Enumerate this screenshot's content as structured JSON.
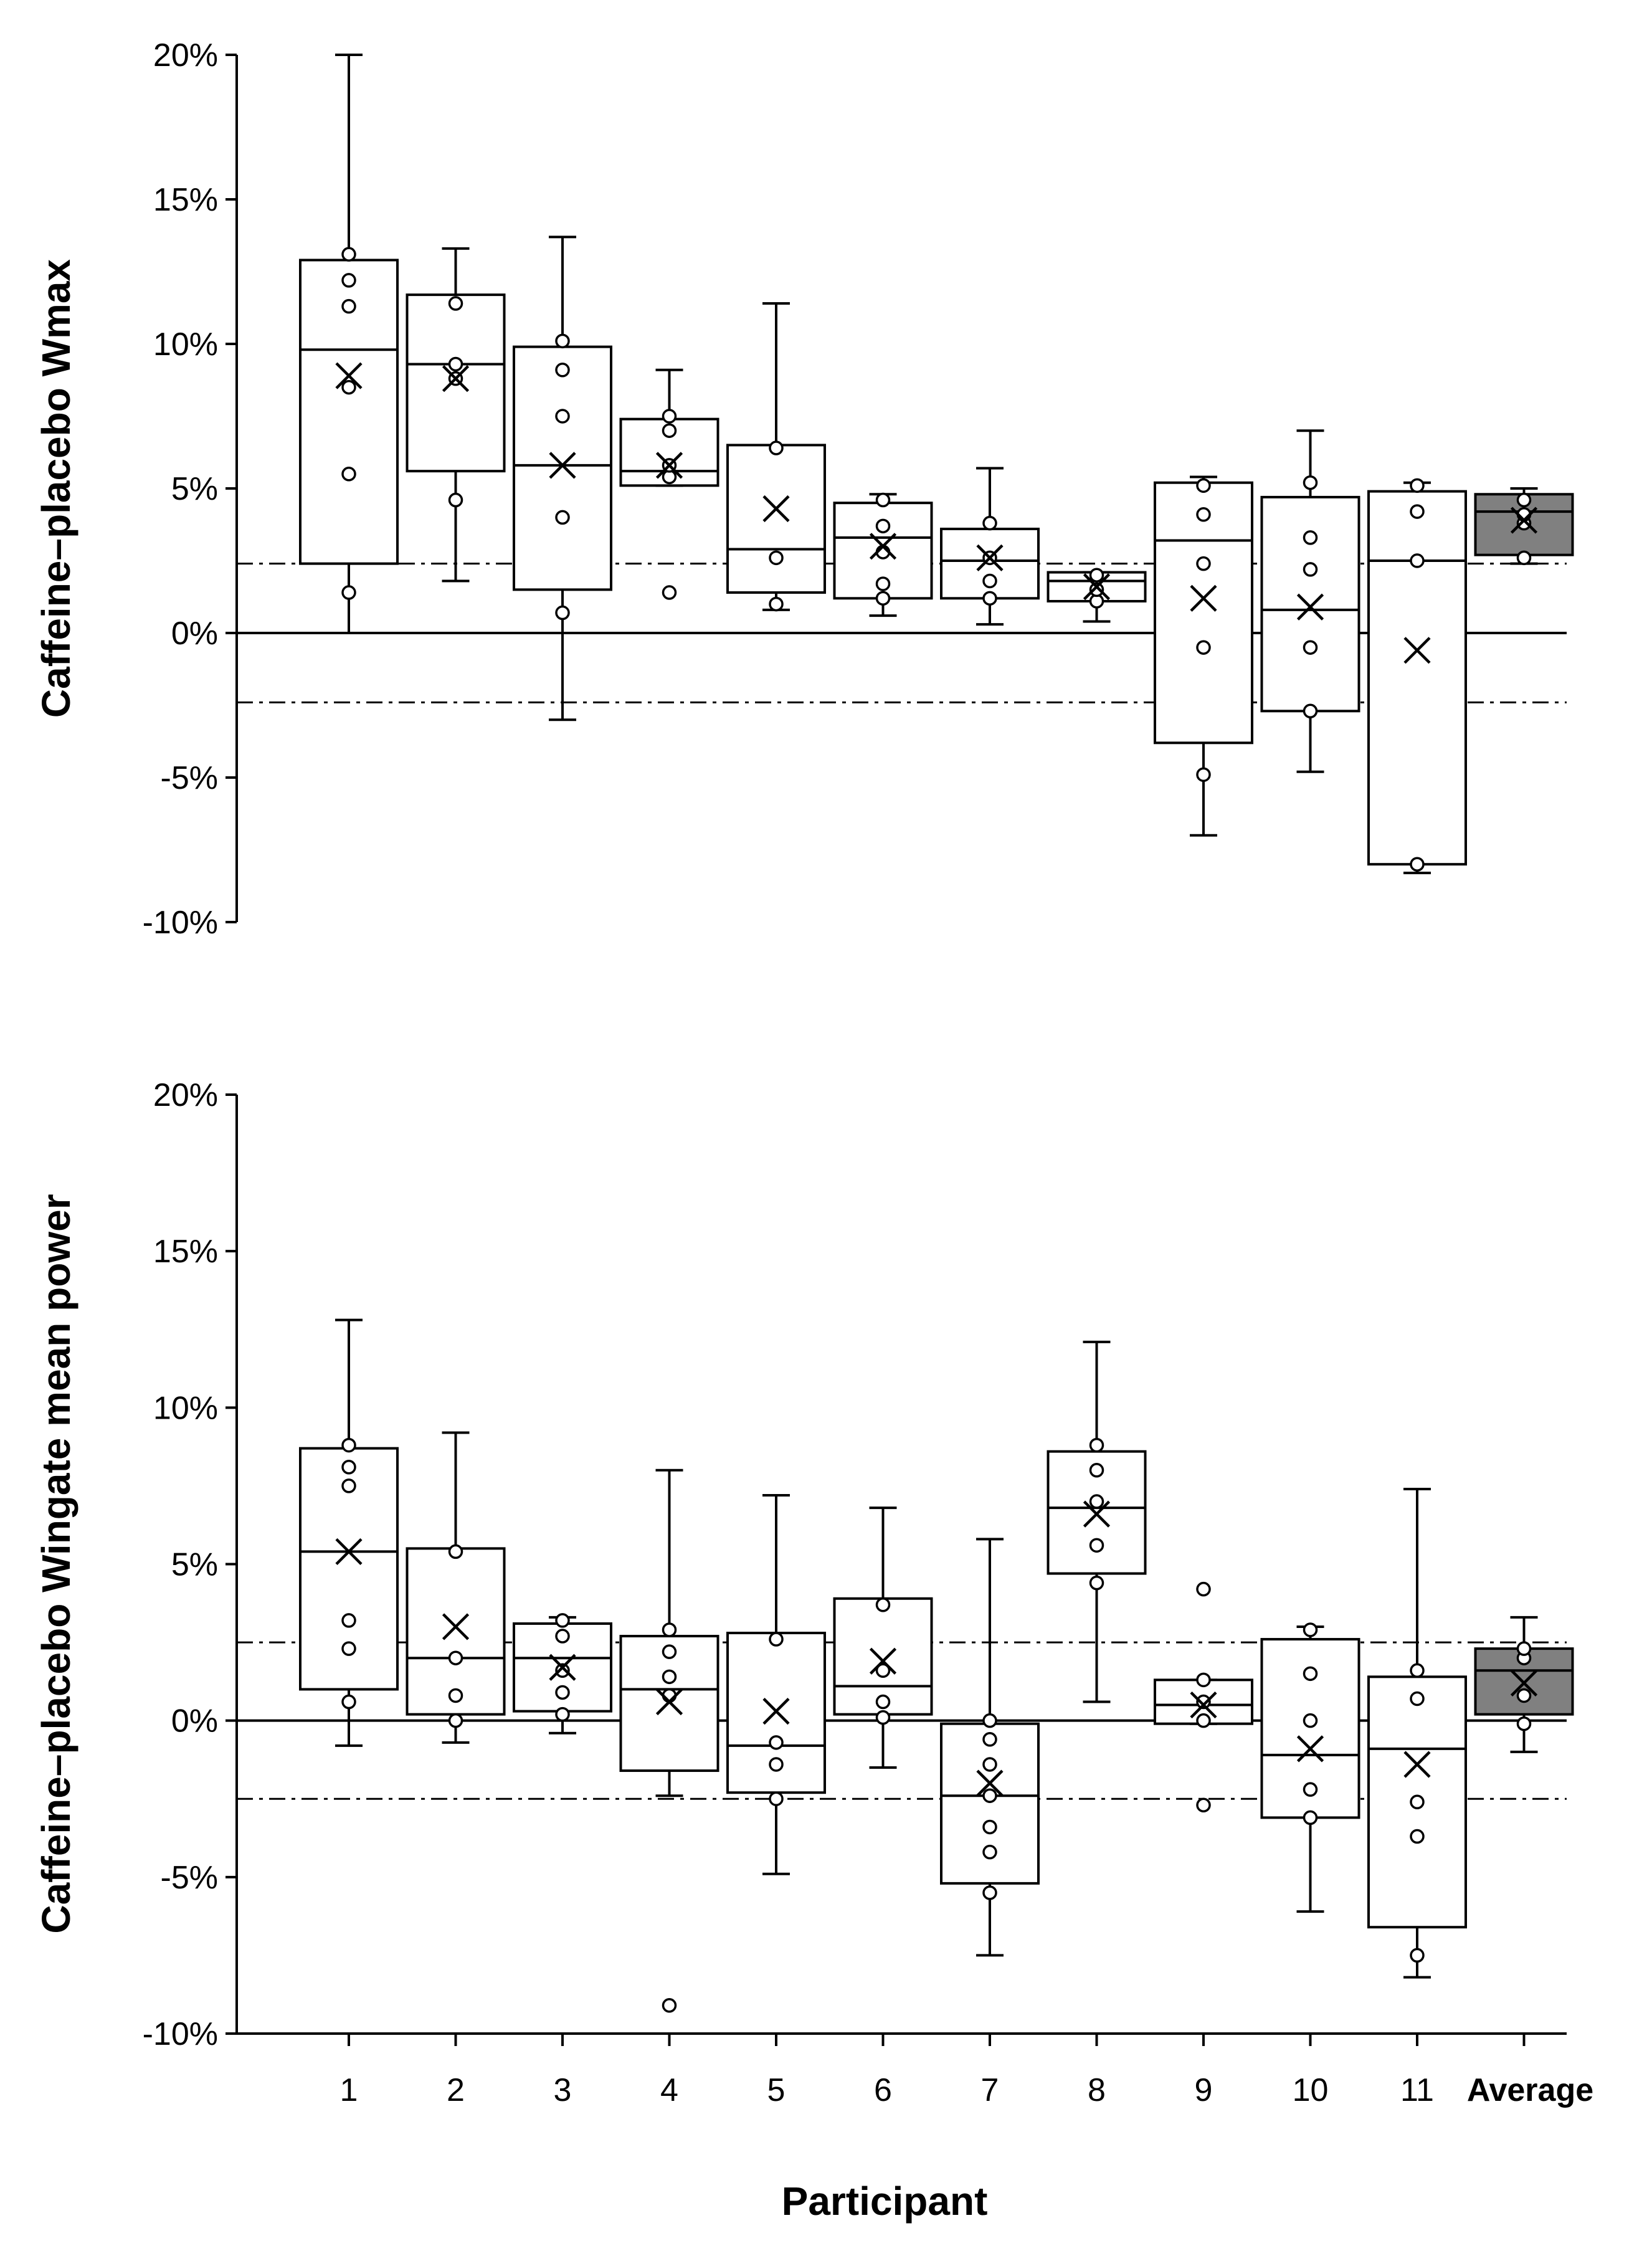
{
  "figure": {
    "xlabel": "Participant"
  },
  "chart_data": [
    {
      "type": "box",
      "ylabel": "Caffeine–placebo Wmax",
      "ylim": [
        -10,
        20
      ],
      "yticks": [
        -10,
        -5,
        0,
        5,
        10,
        15,
        20
      ],
      "ytick_labels": [
        "-10%",
        "-5%",
        "0%",
        "5%",
        "10%",
        "15%",
        "20%"
      ],
      "reference_lines": [
        {
          "style": "solid",
          "value": 0
        },
        {
          "style": "dash-dot",
          "value": 2.4
        },
        {
          "style": "dash-dot",
          "value": -2.4
        }
      ],
      "colors": {
        "box": "#ffffff",
        "average_box": "#808080",
        "stroke": "#000000"
      },
      "boxes": [
        {
          "category": "1",
          "whisker_low": 0.0,
          "q1": 2.4,
          "median": 9.8,
          "q3": 12.9,
          "whisker_high": 20.0,
          "mean": 8.9,
          "points": [
            1.4,
            5.5,
            8.5,
            11.3,
            12.2,
            13.1
          ]
        },
        {
          "category": "2",
          "whisker_low": 1.8,
          "q1": 5.6,
          "median": 9.3,
          "q3": 11.7,
          "whisker_high": 13.3,
          "mean": 8.8,
          "points": [
            4.6,
            8.8,
            9.3,
            11.4
          ]
        },
        {
          "category": "3",
          "whisker_low": -3.0,
          "q1": 1.5,
          "median": 5.8,
          "q3": 9.9,
          "whisker_high": 13.7,
          "mean": 5.8,
          "points": [
            0.7,
            4.0,
            7.5,
            9.1,
            10.1
          ]
        },
        {
          "category": "4",
          "whisker_low": 5.1,
          "q1": 5.1,
          "median": 5.6,
          "q3": 7.4,
          "whisker_high": 9.1,
          "mean": 5.8,
          "points": [
            1.4,
            5.4,
            5.8,
            7.0,
            7.5
          ]
        },
        {
          "category": "5",
          "whisker_low": 0.8,
          "q1": 1.4,
          "median": 2.9,
          "q3": 6.5,
          "whisker_high": 11.4,
          "mean": 4.3,
          "points": [
            1.0,
            2.6,
            6.4
          ]
        },
        {
          "category": "6",
          "whisker_low": 0.6,
          "q1": 1.2,
          "median": 3.3,
          "q3": 4.5,
          "whisker_high": 4.8,
          "mean": 3.0,
          "points": [
            1.2,
            1.7,
            2.8,
            3.7,
            4.6
          ]
        },
        {
          "category": "7",
          "whisker_low": 0.3,
          "q1": 1.2,
          "median": 2.5,
          "q3": 3.6,
          "whisker_high": 5.7,
          "mean": 2.6,
          "points": [
            1.2,
            1.8,
            2.6,
            3.8
          ]
        },
        {
          "category": "8",
          "whisker_low": 0.4,
          "q1": 1.1,
          "median": 1.8,
          "q3": 2.1,
          "whisker_high": 2.1,
          "mean": 1.6,
          "points": [
            1.1,
            1.5,
            2.0
          ]
        },
        {
          "category": "9",
          "whisker_low": -7.0,
          "q1": -3.8,
          "median": 3.2,
          "q3": 5.2,
          "whisker_high": 5.4,
          "mean": 1.2,
          "points": [
            -4.9,
            -0.5,
            2.4,
            4.1,
            5.1
          ]
        },
        {
          "category": "10",
          "whisker_low": -4.8,
          "q1": -2.7,
          "median": 0.8,
          "q3": 4.7,
          "whisker_high": 7.0,
          "mean": 0.9,
          "points": [
            -2.7,
            -0.5,
            2.2,
            3.3,
            5.2
          ]
        },
        {
          "category": "11",
          "whisker_low": -8.3,
          "q1": -8.0,
          "median": 2.5,
          "q3": 4.9,
          "whisker_high": 5.2,
          "mean": -0.6,
          "points": [
            -8.0,
            2.5,
            4.2,
            5.1
          ]
        },
        {
          "category": "Average",
          "whisker_low": 2.4,
          "q1": 2.7,
          "median": 4.2,
          "q3": 4.8,
          "whisker_high": 5.0,
          "mean": 3.9,
          "points": [
            2.6,
            3.8,
            4.1,
            4.6
          ],
          "highlight": true
        }
      ]
    },
    {
      "type": "box",
      "ylabel": "Caffeine–placebo Wingate mean power",
      "xlabel": "Participant",
      "ylim": [
        -10,
        20
      ],
      "yticks": [
        -10,
        -5,
        0,
        5,
        10,
        15,
        20
      ],
      "ytick_labels": [
        "-10%",
        "-5%",
        "0%",
        "5%",
        "10%",
        "15%",
        "20%"
      ],
      "categories": [
        "1",
        "2",
        "3",
        "4",
        "5",
        "6",
        "7",
        "8",
        "9",
        "10",
        "11",
        "Average"
      ],
      "reference_lines": [
        {
          "style": "solid",
          "value": 0
        },
        {
          "style": "dash-dot",
          "value": 2.5
        },
        {
          "style": "dash-dot",
          "value": -2.5
        }
      ],
      "colors": {
        "box": "#ffffff",
        "average_box": "#808080",
        "stroke": "#000000"
      },
      "boxes": [
        {
          "category": "1",
          "whisker_low": -0.8,
          "q1": 1.0,
          "median": 5.4,
          "q3": 8.7,
          "whisker_high": 12.8,
          "mean": 5.4,
          "points": [
            0.6,
            2.3,
            3.2,
            7.5,
            8.1,
            8.8
          ]
        },
        {
          "category": "2",
          "whisker_low": -0.7,
          "q1": 0.2,
          "median": 2.0,
          "q3": 5.5,
          "whisker_high": 9.2,
          "mean": 3.0,
          "points": [
            0.0,
            0.8,
            2.0,
            5.4
          ]
        },
        {
          "category": "3",
          "whisker_low": -0.4,
          "q1": 0.3,
          "median": 2.0,
          "q3": 3.1,
          "whisker_high": 3.3,
          "mean": 1.7,
          "points": [
            0.2,
            0.9,
            1.6,
            2.7,
            3.2
          ]
        },
        {
          "category": "4",
          "whisker_low": -2.4,
          "q1": -1.6,
          "median": 1.0,
          "q3": 2.7,
          "whisker_high": 8.0,
          "mean": 0.6,
          "points": [
            -9.1,
            0.8,
            1.4,
            2.2,
            2.9
          ]
        },
        {
          "category": "5",
          "whisker_low": -4.9,
          "q1": -2.3,
          "median": -0.8,
          "q3": 2.8,
          "whisker_high": 7.2,
          "mean": 0.3,
          "points": [
            -2.5,
            -1.4,
            -0.7,
            2.6
          ]
        },
        {
          "category": "6",
          "whisker_low": -1.5,
          "q1": 0.2,
          "median": 1.1,
          "q3": 3.9,
          "whisker_high": 6.8,
          "mean": 1.9,
          "points": [
            0.1,
            0.6,
            1.6,
            3.7
          ]
        },
        {
          "category": "7",
          "whisker_low": -7.5,
          "q1": -5.2,
          "median": -2.4,
          "q3": -0.1,
          "whisker_high": 5.8,
          "mean": -2.0,
          "points": [
            -5.5,
            -4.2,
            -3.4,
            -2.4,
            -1.4,
            -0.6,
            0.0
          ]
        },
        {
          "category": "8",
          "whisker_low": 0.6,
          "q1": 4.7,
          "median": 6.8,
          "q3": 8.6,
          "whisker_high": 12.1,
          "mean": 6.6,
          "points": [
            4.4,
            5.6,
            7.0,
            8.0,
            8.8
          ]
        },
        {
          "category": "9",
          "whisker_low": -0.1,
          "q1": -0.1,
          "median": 0.5,
          "q3": 1.3,
          "whisker_high": 1.3,
          "mean": 0.5,
          "points": [
            -2.7,
            0.0,
            0.6,
            1.3,
            4.2
          ]
        },
        {
          "category": "10",
          "whisker_low": -6.1,
          "q1": -3.1,
          "median": -1.1,
          "q3": 2.6,
          "whisker_high": 3.0,
          "mean": -0.9,
          "points": [
            -3.1,
            -2.2,
            0.0,
            1.5,
            2.9
          ]
        },
        {
          "category": "11",
          "whisker_low": -8.2,
          "q1": -6.6,
          "median": -0.9,
          "q3": 1.4,
          "whisker_high": 7.4,
          "mean": -1.4,
          "points": [
            -7.5,
            -3.7,
            -2.6,
            0.7,
            1.6
          ]
        },
        {
          "category": "Average",
          "whisker_low": -1.0,
          "q1": 0.2,
          "median": 1.6,
          "q3": 2.3,
          "whisker_high": 3.3,
          "mean": 1.2,
          "points": [
            -0.1,
            0.8,
            2.0,
            2.3
          ]
        }
      ]
    }
  ]
}
